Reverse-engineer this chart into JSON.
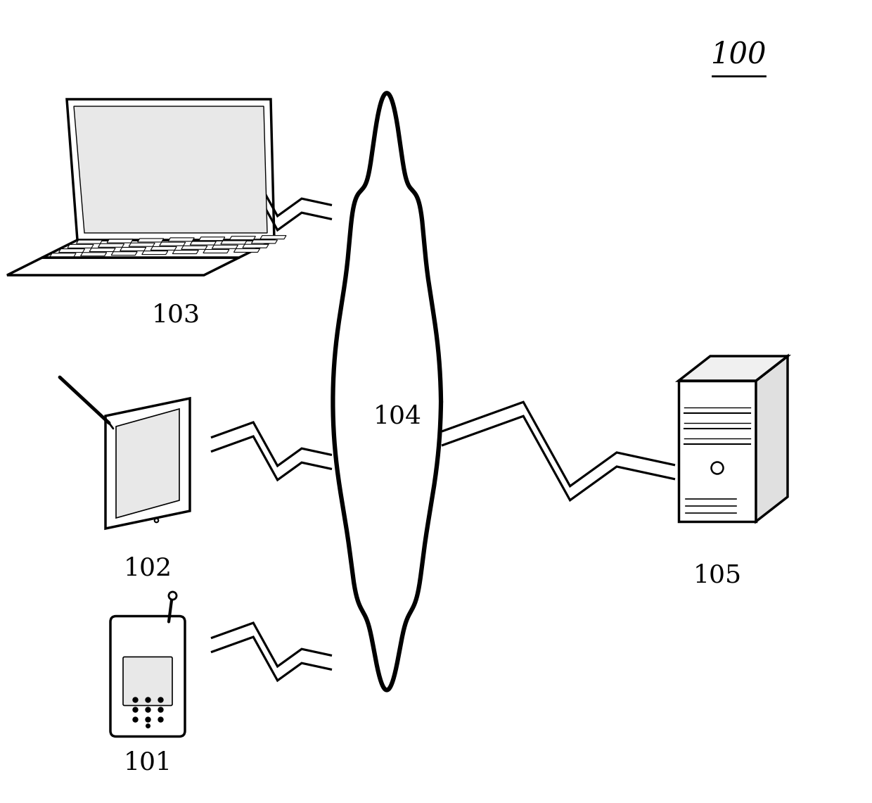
{
  "title_label": "100",
  "label_103": "103",
  "label_102": "102",
  "label_101": "101",
  "label_104": "104",
  "label_105": "105",
  "bg_color": "#ffffff",
  "text_color": "#000000",
  "line_color": "#000000",
  "figsize": [
    12.4,
    11.41
  ],
  "dpi": 100,
  "xlim": [
    0,
    12.4
  ],
  "ylim": [
    0,
    11.41
  ]
}
